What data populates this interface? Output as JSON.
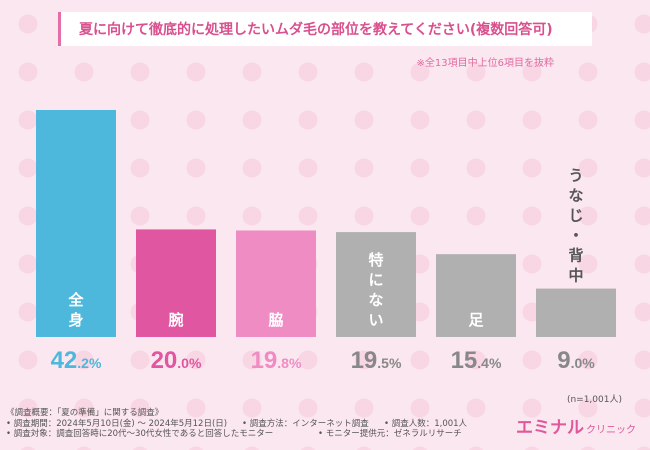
{
  "title": "夏に向けて徹底的に処理したいムダ毛の部位を教えてください(複数回答可)",
  "note": "※全13項目中上位6項目を抜粋",
  "sample_size": "(n=1,001人)",
  "footer": {
    "overview": "《調査概要：「夏の準備」に関する調査》",
    "period": "• 調査期間：2024年5月10日(金) ～ 2024年5月12日(日)",
    "method": "• 調査方法：インターネット調査",
    "respondents": "• 調査人数：1,001人",
    "target": "• 調査対象：調査回答時に20代～30代女性であると回答したモニター",
    "provider": "• モニター提供元：ゼネラルリサーチ"
  },
  "logo": {
    "main": "エミナル",
    "sub": "クリニック"
  },
  "chart_data": {
    "type": "bar",
    "title": "夏に向けて徹底的に処理したいムダ毛の部位を教えてください(複数回答可)",
    "categories": [
      "全身",
      "腕",
      "脇",
      "特にない",
      "足",
      "うなじ・背中"
    ],
    "values": [
      42.2,
      20.0,
      19.8,
      19.5,
      15.4,
      9.0
    ],
    "value_labels": [
      {
        "int": "42",
        "dec": ".2%"
      },
      {
        "int": "20",
        "dec": ".0%"
      },
      {
        "int": "19",
        "dec": ".8%"
      },
      {
        "int": "19",
        "dec": ".5%"
      },
      {
        "int": "15",
        "dec": ".4%"
      },
      {
        "int": "9",
        "dec": ".0%"
      }
    ],
    "colors": [
      "#4db8dc",
      "#e056a0",
      "#f08cc4",
      "#b0b0b0",
      "#b0b0b0",
      "#b0b0b0"
    ],
    "label_colors": [
      "#4db8dc",
      "#e056a0",
      "#f08cc4",
      "#888888",
      "#888888",
      "#888888"
    ],
    "ylim": [
      0,
      45
    ],
    "xlabel": "",
    "ylabel": ""
  }
}
